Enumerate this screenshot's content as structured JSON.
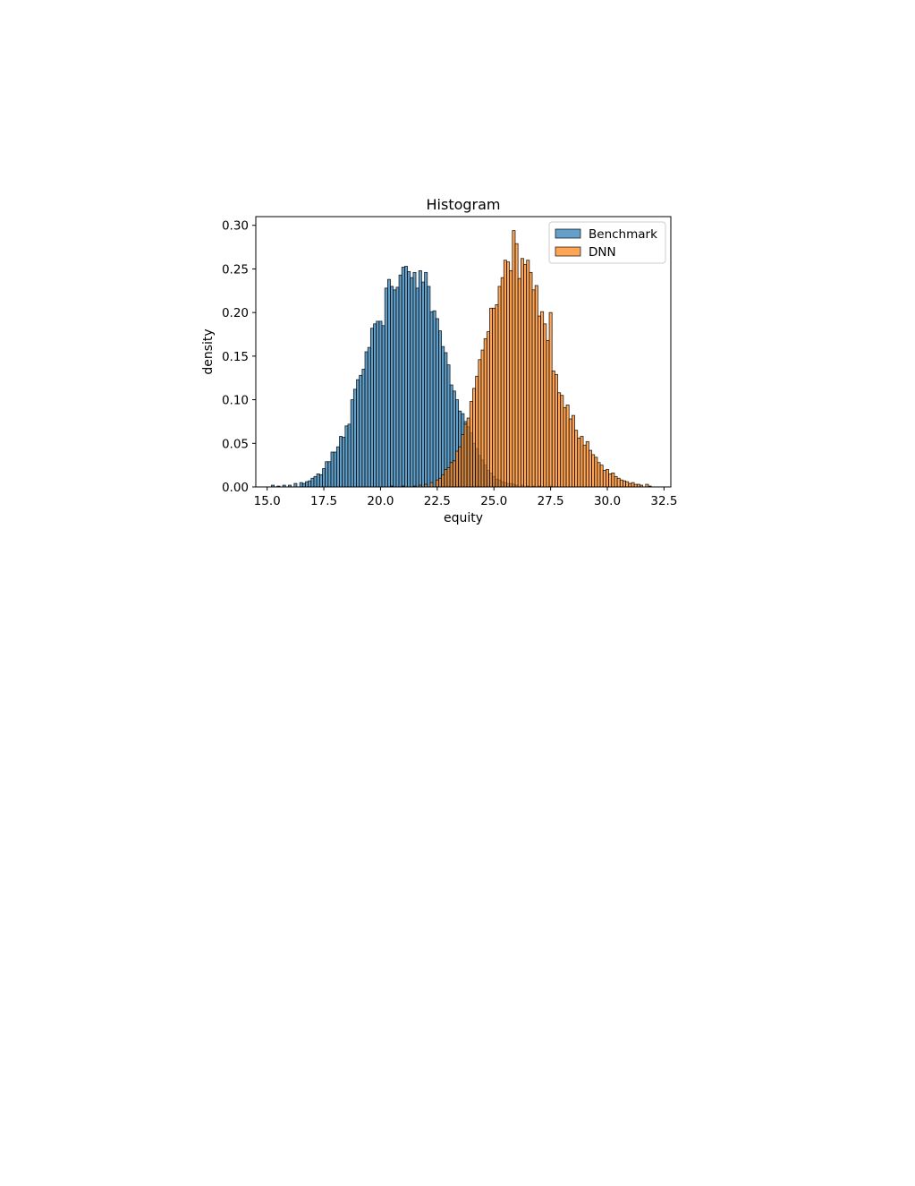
{
  "chart_data": {
    "type": "bar",
    "title": "Histogram",
    "xlabel": "equity",
    "ylabel": "density",
    "xlim": [
      14.5,
      32.8
    ],
    "ylim": [
      0.0,
      0.31
    ],
    "x_ticks": [
      "15.0",
      "17.5",
      "20.0",
      "22.5",
      "25.0",
      "27.5",
      "30.0",
      "32.5"
    ],
    "y_ticks": [
      "0.00",
      "0.05",
      "0.10",
      "0.15",
      "0.20",
      "0.25",
      "0.30"
    ],
    "grid": false,
    "legend_position": "top-right",
    "bin_width": 0.125,
    "series": [
      {
        "name": "Benchmark",
        "color": "#1f77b4",
        "alpha": 0.7,
        "x": [
          15.25,
          15.5,
          15.75,
          16.0,
          16.25,
          16.5,
          16.625,
          16.75,
          16.875,
          17.0,
          17.125,
          17.25,
          17.375,
          17.5,
          17.625,
          17.75,
          17.875,
          18.0,
          18.125,
          18.25,
          18.375,
          18.5,
          18.625,
          18.75,
          18.875,
          19.0,
          19.125,
          19.25,
          19.375,
          19.5,
          19.625,
          19.75,
          19.875,
          20.0,
          20.125,
          20.25,
          20.375,
          20.5,
          20.625,
          20.75,
          20.875,
          21.0,
          21.125,
          21.25,
          21.375,
          21.5,
          21.625,
          21.75,
          21.875,
          22.0,
          22.125,
          22.25,
          22.375,
          22.5,
          22.625,
          22.75,
          22.875,
          23.0,
          23.125,
          23.25,
          23.375,
          23.5,
          23.625,
          23.75,
          23.875,
          24.0,
          24.125,
          24.25,
          24.375,
          24.5,
          24.625,
          24.75,
          24.875,
          25.0,
          25.125,
          25.25,
          25.375,
          25.5,
          25.625,
          25.75,
          25.875,
          26.0,
          26.25,
          26.5,
          26.75,
          27.0,
          27.5
        ],
        "y": [
          0.002,
          0.001,
          0.002,
          0.002,
          0.004,
          0.005,
          0.004,
          0.006,
          0.007,
          0.01,
          0.012,
          0.015,
          0.014,
          0.021,
          0.029,
          0.029,
          0.04,
          0.04,
          0.046,
          0.058,
          0.057,
          0.07,
          0.072,
          0.1,
          0.112,
          0.123,
          0.128,
          0.135,
          0.155,
          0.16,
          0.182,
          0.187,
          0.19,
          0.19,
          0.185,
          0.228,
          0.238,
          0.23,
          0.226,
          0.229,
          0.243,
          0.252,
          0.253,
          0.247,
          0.24,
          0.246,
          0.228,
          0.248,
          0.235,
          0.246,
          0.23,
          0.201,
          0.202,
          0.193,
          0.179,
          0.161,
          0.154,
          0.14,
          0.117,
          0.11,
          0.1,
          0.087,
          0.084,
          0.075,
          0.069,
          0.062,
          0.05,
          0.044,
          0.036,
          0.031,
          0.025,
          0.019,
          0.016,
          0.012,
          0.009,
          0.008,
          0.006,
          0.005,
          0.004,
          0.004,
          0.003,
          0.002,
          0.002,
          0.001,
          0.001,
          0.001,
          0.001
        ]
      },
      {
        "name": "DNN",
        "color": "#ff7f0e",
        "alpha": 0.7,
        "x": [
          20.5,
          21.0,
          21.5,
          21.75,
          22.0,
          22.25,
          22.5,
          22.625,
          22.75,
          22.875,
          23.0,
          23.125,
          23.25,
          23.375,
          23.5,
          23.625,
          23.75,
          23.875,
          24.0,
          24.125,
          24.25,
          24.375,
          24.5,
          24.625,
          24.75,
          24.875,
          25.0,
          25.125,
          25.25,
          25.375,
          25.5,
          25.625,
          25.75,
          25.875,
          26.0,
          26.125,
          26.25,
          26.375,
          26.5,
          26.625,
          26.75,
          26.875,
          27.0,
          27.125,
          27.25,
          27.375,
          27.5,
          27.625,
          27.75,
          27.875,
          28.0,
          28.125,
          28.25,
          28.375,
          28.5,
          28.625,
          28.75,
          28.875,
          29.0,
          29.125,
          29.25,
          29.375,
          29.5,
          29.625,
          29.75,
          29.875,
          30.0,
          30.125,
          30.25,
          30.375,
          30.5,
          30.625,
          30.75,
          30.875,
          31.0,
          31.125,
          31.25,
          31.375,
          31.5,
          31.75,
          31.875
        ],
        "y": [
          0.001,
          0.001,
          0.001,
          0.002,
          0.003,
          0.005,
          0.008,
          0.01,
          0.014,
          0.02,
          0.022,
          0.028,
          0.03,
          0.041,
          0.046,
          0.06,
          0.072,
          0.079,
          0.098,
          0.113,
          0.127,
          0.146,
          0.157,
          0.17,
          0.178,
          0.205,
          0.205,
          0.209,
          0.23,
          0.24,
          0.26,
          0.258,
          0.248,
          0.294,
          0.279,
          0.239,
          0.262,
          0.255,
          0.26,
          0.246,
          0.226,
          0.231,
          0.196,
          0.201,
          0.187,
          0.168,
          0.2,
          0.133,
          0.129,
          0.108,
          0.105,
          0.091,
          0.094,
          0.078,
          0.082,
          0.065,
          0.056,
          0.058,
          0.048,
          0.052,
          0.042,
          0.037,
          0.034,
          0.028,
          0.025,
          0.019,
          0.02,
          0.015,
          0.016,
          0.012,
          0.01,
          0.008,
          0.007,
          0.006,
          0.004,
          0.005,
          0.003,
          0.003,
          0.002,
          0.003,
          0.001
        ]
      }
    ]
  }
}
